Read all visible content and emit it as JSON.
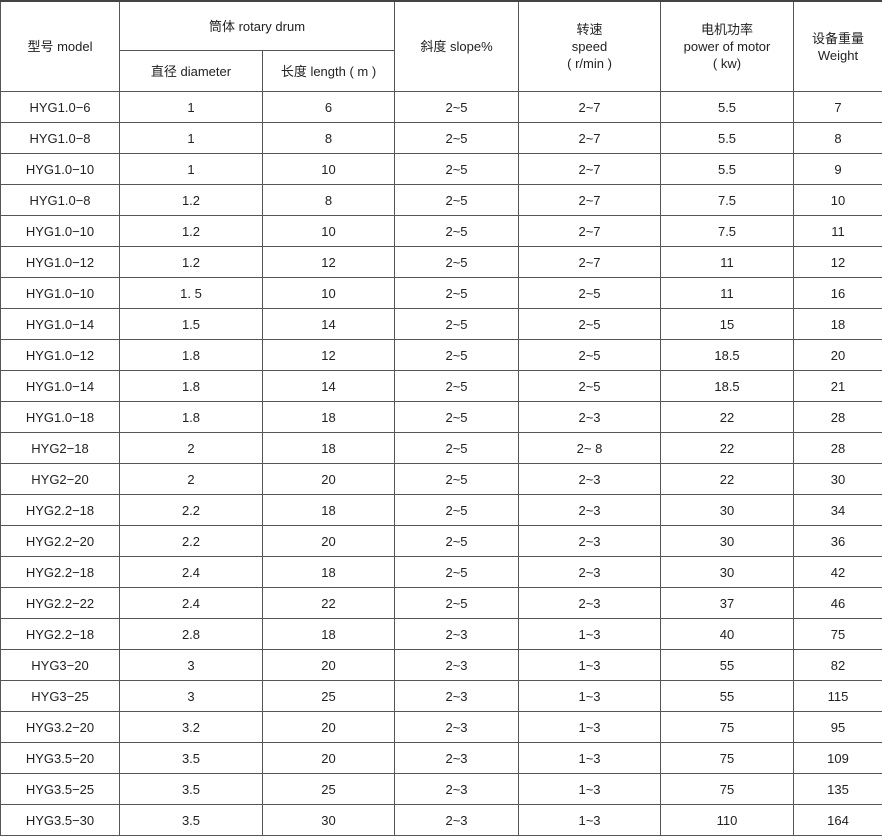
{
  "header": {
    "model": "型号 model",
    "drum": "筒体 rotary drum",
    "diameter": "直径 diameter",
    "length": "长度 length ( m )",
    "slope": "斜度 slope%",
    "speed_cn": "转速",
    "speed_en": "speed",
    "speed_unit": "( r/min )",
    "power_cn": "电机功率",
    "power_en": "power of motor",
    "power_unit": "( kw)",
    "weight_cn": "设备重量",
    "weight_en": "Weight"
  },
  "rows": [
    [
      "HYG1.0−6",
      "1",
      "6",
      "2~5",
      "2~7",
      "5.5",
      "7"
    ],
    [
      "HYG1.0−8",
      "1",
      "8",
      "2~5",
      "2~7",
      "5.5",
      "8"
    ],
    [
      "HYG1.0−10",
      "1",
      "10",
      "2~5",
      "2~7",
      "5.5",
      "9"
    ],
    [
      "HYG1.0−8",
      "1.2",
      "8",
      "2~5",
      "2~7",
      "7.5",
      "10"
    ],
    [
      "HYG1.0−10",
      "1.2",
      "10",
      "2~5",
      "2~7",
      "7.5",
      "11"
    ],
    [
      "HYG1.0−12",
      "1.2",
      "12",
      "2~5",
      "2~7",
      "11",
      "12"
    ],
    [
      "HYG1.0−10",
      "1. 5",
      "10",
      "2~5",
      "2~5",
      "11",
      "16"
    ],
    [
      "HYG1.0−14",
      "1.5",
      "14",
      "2~5",
      "2~5",
      "15",
      "18"
    ],
    [
      "HYG1.0−12",
      "1.8",
      "12",
      "2~5",
      "2~5",
      "18.5",
      "20"
    ],
    [
      "HYG1.0−14",
      "1.8",
      "14",
      "2~5",
      "2~5",
      "18.5",
      "21"
    ],
    [
      "HYG1.0−18",
      "1.8",
      "18",
      "2~5",
      "2~3",
      "22",
      "28"
    ],
    [
      "HYG2−18",
      "2",
      "18",
      "2~5",
      "2~ 8",
      "22",
      "28"
    ],
    [
      "HYG2−20",
      "2",
      "20",
      "2~5",
      "2~3",
      "22",
      "30"
    ],
    [
      "HYG2.2−18",
      "2.2",
      "18",
      "2~5",
      "2~3",
      "30",
      "34"
    ],
    [
      "HYG2.2−20",
      "2.2",
      "20",
      "2~5",
      "2~3",
      "30",
      "36"
    ],
    [
      "HYG2.2−18",
      "2.4",
      "18",
      "2~5",
      "2~3",
      "30",
      "42"
    ],
    [
      "HYG2.2−22",
      "2.4",
      "22",
      "2~5",
      "2~3",
      "37",
      "46"
    ],
    [
      "HYG2.2−18",
      "2.8",
      "18",
      "2~3",
      "1~3",
      "40",
      "75"
    ],
    [
      "HYG3−20",
      "3",
      "20",
      "2~3",
      "1~3",
      "55",
      "82"
    ],
    [
      "HYG3−25",
      "3",
      "25",
      "2~3",
      "1~3",
      "55",
      "115"
    ],
    [
      "HYG3.2−20",
      "3.2",
      "20",
      "2~3",
      "1~3",
      "75",
      "95"
    ],
    [
      "HYG3.5−20",
      "3.5",
      "20",
      "2~3",
      "1~3",
      "75",
      "109"
    ],
    [
      "HYG3.5−25",
      "3.5",
      "25",
      "2~3",
      "1~3",
      "75",
      "135"
    ],
    [
      "HYG3.5−30",
      "3.5",
      "30",
      "2~3",
      "1~3",
      "110",
      "164"
    ]
  ]
}
